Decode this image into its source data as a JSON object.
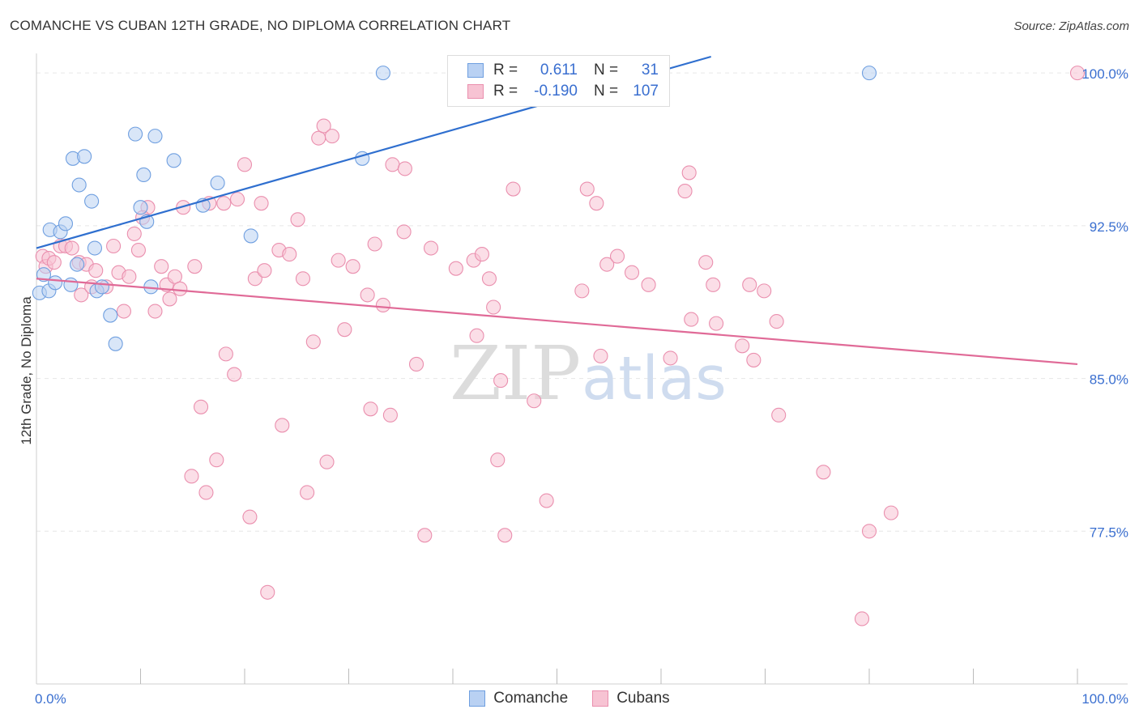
{
  "title": "COMANCHE VS CUBAN 12TH GRADE, NO DIPLOMA CORRELATION CHART",
  "source": "Source: ZipAtlas.com",
  "watermark": {
    "zip": "ZIP",
    "atlas": "atlas"
  },
  "colors": {
    "comanche_fill": "#b9d1f3",
    "comanche_stroke": "#6f9fe0",
    "comanche_line": "#2f6fcf",
    "cubans_fill": "#f7c3d3",
    "cubans_stroke": "#ea8fae",
    "cubans_line": "#e06a97",
    "tick_label": "#3a6fd0",
    "grid": "#e6e6e6"
  },
  "legend": {
    "rows": [
      {
        "r_label": "R =",
        "r_value": "0.611",
        "n_label": "N =",
        "n_value": "31"
      },
      {
        "r_label": "R =",
        "r_value": "-0.190",
        "n_label": "N =",
        "n_value": "107"
      }
    ]
  },
  "bottom_legend": [
    "Comanche",
    "Cubans"
  ],
  "chart_data": {
    "type": "scatter",
    "title": "COMANCHE VS CUBAN 12TH GRADE, NO DIPLOMA CORRELATION CHART",
    "xlabel": "",
    "ylabel": "12th Grade, No Diploma",
    "xlim": [
      0,
      100
    ],
    "ylim": [
      70.0,
      100.8
    ],
    "y_ticks": [
      77.5,
      85.0,
      92.5,
      100.0
    ],
    "y_tick_labels": [
      "77.5%",
      "85.0%",
      "92.5%",
      "100.0%"
    ],
    "x_tick_labels": [
      "0.0%",
      "100.0%"
    ],
    "x_minor_ticks": [
      10,
      20,
      30,
      40,
      50,
      60,
      70,
      80,
      90,
      100
    ],
    "series": [
      {
        "name": "Comanche",
        "trend": {
          "x0": 0,
          "y0": 91.4,
          "x1": 64.8,
          "y1": 100.8
        },
        "points": [
          [
            0.3,
            89.2
          ],
          [
            0.7,
            90.1
          ],
          [
            1.2,
            89.3
          ],
          [
            1.3,
            92.3
          ],
          [
            1.8,
            89.7
          ],
          [
            2.3,
            92.2
          ],
          [
            2.8,
            92.6
          ],
          [
            3.3,
            89.6
          ],
          [
            3.5,
            95.8
          ],
          [
            3.9,
            90.6
          ],
          [
            4.1,
            94.5
          ],
          [
            4.6,
            95.9
          ],
          [
            5.3,
            93.7
          ],
          [
            5.6,
            91.4
          ],
          [
            5.8,
            89.3
          ],
          [
            6.3,
            89.5
          ],
          [
            7.1,
            88.1
          ],
          [
            7.6,
            86.7
          ],
          [
            9.5,
            97.0
          ],
          [
            10.0,
            93.4
          ],
          [
            10.3,
            95.0
          ],
          [
            10.6,
            92.7
          ],
          [
            11.0,
            89.5
          ],
          [
            11.4,
            96.9
          ],
          [
            13.2,
            95.7
          ],
          [
            16.0,
            93.5
          ],
          [
            17.4,
            94.6
          ],
          [
            20.6,
            92.0
          ],
          [
            31.3,
            95.8
          ],
          [
            33.3,
            100.0
          ],
          [
            80.0,
            100.0
          ]
        ]
      },
      {
        "name": "Cubans",
        "trend": {
          "x0": 0,
          "y0": 89.9,
          "x1": 100,
          "y1": 85.7
        },
        "points": [
          [
            0.6,
            91.0
          ],
          [
            0.9,
            90.5
          ],
          [
            1.2,
            90.9
          ],
          [
            1.7,
            90.7
          ],
          [
            2.3,
            91.5
          ],
          [
            2.8,
            91.5
          ],
          [
            3.4,
            91.4
          ],
          [
            4.1,
            90.7
          ],
          [
            4.3,
            89.1
          ],
          [
            4.8,
            90.6
          ],
          [
            5.3,
            89.5
          ],
          [
            5.7,
            90.3
          ],
          [
            6.7,
            89.5
          ],
          [
            7.4,
            91.5
          ],
          [
            7.9,
            90.2
          ],
          [
            8.4,
            88.3
          ],
          [
            8.9,
            90.0
          ],
          [
            9.4,
            92.1
          ],
          [
            9.8,
            91.3
          ],
          [
            10.7,
            93.4
          ],
          [
            10.2,
            92.9
          ],
          [
            11.4,
            88.3
          ],
          [
            12.0,
            90.5
          ],
          [
            12.5,
            89.6
          ],
          [
            12.8,
            88.9
          ],
          [
            13.3,
            90.0
          ],
          [
            13.8,
            89.4
          ],
          [
            14.1,
            93.4
          ],
          [
            15.2,
            90.5
          ],
          [
            15.8,
            83.6
          ],
          [
            14.9,
            80.2
          ],
          [
            16.3,
            79.4
          ],
          [
            17.3,
            81.0
          ],
          [
            18.0,
            93.6
          ],
          [
            18.2,
            86.2
          ],
          [
            19.0,
            85.2
          ],
          [
            19.3,
            93.8
          ],
          [
            20.0,
            95.5
          ],
          [
            20.5,
            78.2
          ],
          [
            21.0,
            89.9
          ],
          [
            21.6,
            93.6
          ],
          [
            21.9,
            90.3
          ],
          [
            22.2,
            74.5
          ],
          [
            23.3,
            91.3
          ],
          [
            23.6,
            82.7
          ],
          [
            24.3,
            91.1
          ],
          [
            25.1,
            92.8
          ],
          [
            25.6,
            89.9
          ],
          [
            26.0,
            79.4
          ],
          [
            26.6,
            86.8
          ],
          [
            27.1,
            96.8
          ],
          [
            27.6,
            97.4
          ],
          [
            27.9,
            80.9
          ],
          [
            28.4,
            96.9
          ],
          [
            29.0,
            90.8
          ],
          [
            29.6,
            87.4
          ],
          [
            30.4,
            90.5
          ],
          [
            31.8,
            89.1
          ],
          [
            32.1,
            83.5
          ],
          [
            32.5,
            91.6
          ],
          [
            33.3,
            88.6
          ],
          [
            34.0,
            83.2
          ],
          [
            34.2,
            95.5
          ],
          [
            35.4,
            95.3
          ],
          [
            35.3,
            92.2
          ],
          [
            36.5,
            85.7
          ],
          [
            37.3,
            77.3
          ],
          [
            37.9,
            91.4
          ],
          [
            40.3,
            90.4
          ],
          [
            42.0,
            90.8
          ],
          [
            42.3,
            87.1
          ],
          [
            42.8,
            91.1
          ],
          [
            43.5,
            89.9
          ],
          [
            43.9,
            88.5
          ],
          [
            44.3,
            81.0
          ],
          [
            44.6,
            84.9
          ],
          [
            45.0,
            77.3
          ],
          [
            45.8,
            94.3
          ],
          [
            47.8,
            83.9
          ],
          [
            49.0,
            79.0
          ],
          [
            52.4,
            89.3
          ],
          [
            52.9,
            94.3
          ],
          [
            53.8,
            93.6
          ],
          [
            54.2,
            86.1
          ],
          [
            54.8,
            90.6
          ],
          [
            55.8,
            91.0
          ],
          [
            57.2,
            90.2
          ],
          [
            58.8,
            89.6
          ],
          [
            60.9,
            86.0
          ],
          [
            62.3,
            94.2
          ],
          [
            62.7,
            95.1
          ],
          [
            62.9,
            87.9
          ],
          [
            64.3,
            90.7
          ],
          [
            65.0,
            89.6
          ],
          [
            65.3,
            87.7
          ],
          [
            67.8,
            86.6
          ],
          [
            68.5,
            89.6
          ],
          [
            68.9,
            85.9
          ],
          [
            69.9,
            89.3
          ],
          [
            71.1,
            87.8
          ],
          [
            71.3,
            83.2
          ],
          [
            75.6,
            80.4
          ],
          [
            79.3,
            73.2
          ],
          [
            80.0,
            77.5
          ],
          [
            82.1,
            78.4
          ],
          [
            100.0,
            100.0
          ],
          [
            16.6,
            93.6
          ]
        ]
      }
    ]
  }
}
